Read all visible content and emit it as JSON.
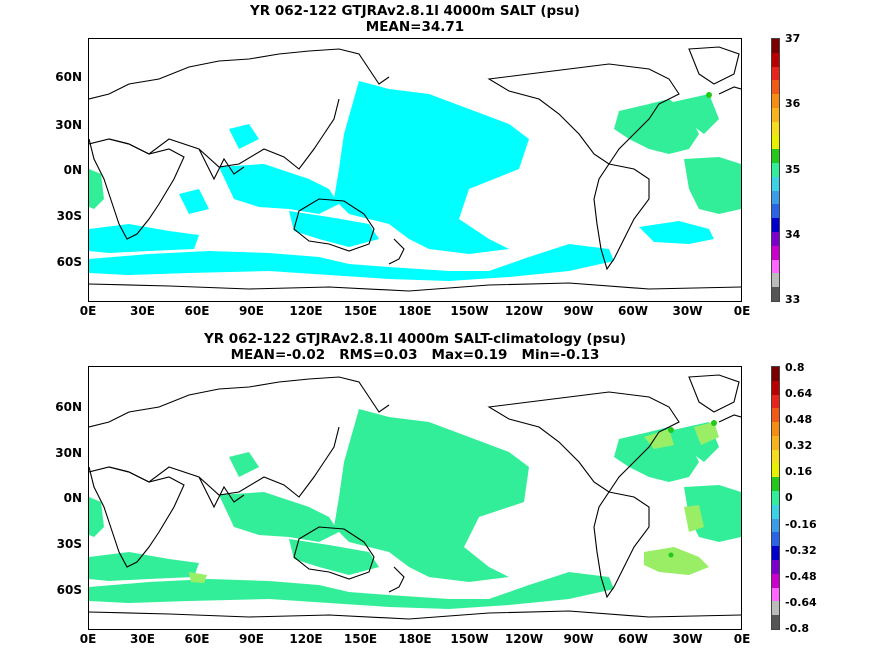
{
  "panels": [
    {
      "title_line1": "YR 062-122 GTJRAv2.8.1l 4000m SALT (psu)",
      "title_line2": "MEAN=34.71",
      "colorbar_labels": [
        "37",
        "36",
        "35",
        "34",
        "33"
      ],
      "field_colors": {
        "low": "#00ffff",
        "mid": "#33ee99"
      }
    },
    {
      "title_line1": "YR 062-122 GTJRAv2.8.1l 4000m SALT-climatology (psu)",
      "title_line2": "MEAN=-0.02   RMS=0.03   Max=0.19   Min=-0.13",
      "colorbar_labels": [
        "0.8",
        "0.64",
        "0.48",
        "0.32",
        "0.16",
        "0",
        "-0.16",
        "-0.32",
        "-0.48",
        "-0.64",
        "-0.8"
      ],
      "field_colors": {
        "main": "#33ee99",
        "high": "#99ee66"
      }
    }
  ],
  "lat_labels": [
    "60N",
    "30N",
    "0N",
    "30S",
    "60S"
  ],
  "lon_labels": [
    "0E",
    "30E",
    "60E",
    "90E",
    "120E",
    "150E",
    "180E",
    "150W",
    "120W",
    "90W",
    "60W",
    "30W",
    "0E"
  ],
  "colorbar_colors": [
    "#7a0000",
    "#b80000",
    "#e8241a",
    "#f05a14",
    "#f58c14",
    "#f5b41e",
    "#f5dc1e",
    "#e6f000",
    "#22c81a",
    "#33ee99",
    "#3cd2e6",
    "#3c9ce6",
    "#2a64e6",
    "#0000cc",
    "#7a00cc",
    "#cc00cc",
    "#ff66ff",
    "#bbbbbb",
    "#555555"
  ]
}
